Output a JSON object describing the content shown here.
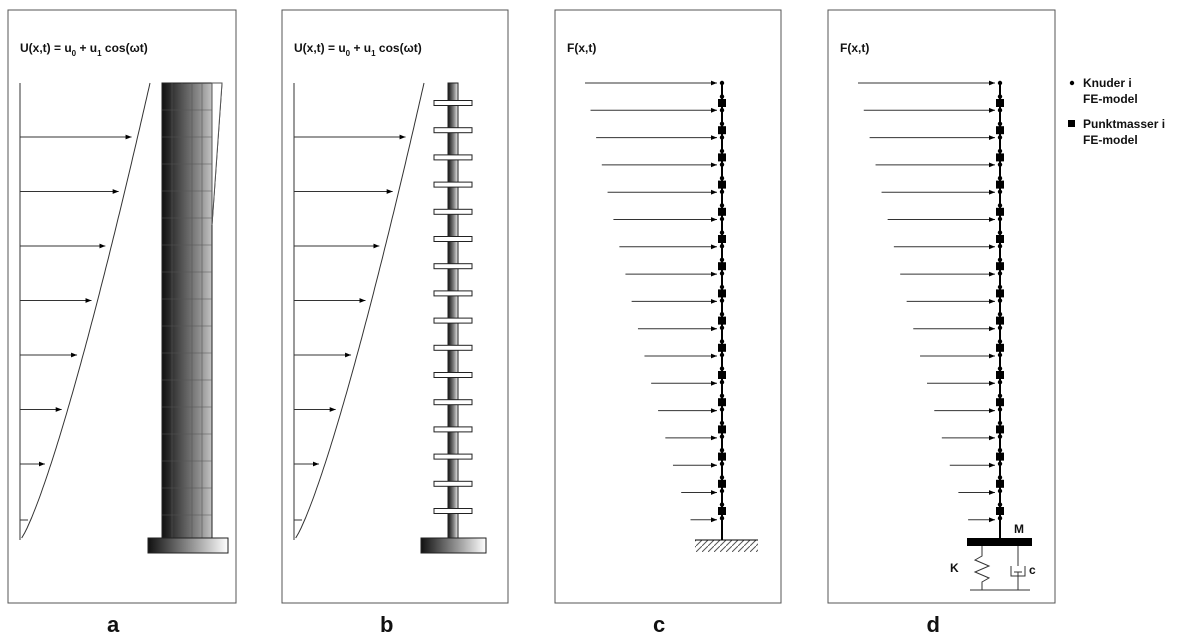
{
  "panels": [
    {
      "label": "a",
      "title": {
        "parts": [
          "U(x,t) = u",
          "0",
          " + u",
          "1",
          " cos(ωt)"
        ]
      }
    },
    {
      "label": "b",
      "title": {
        "parts": [
          "U(x,t) = u",
          "0",
          " + u",
          "1",
          " cos(ωt)"
        ]
      }
    },
    {
      "label": "c",
      "title": {
        "parts": [
          "F(x,t)"
        ]
      }
    },
    {
      "label": "d",
      "title": {
        "parts": [
          "F(x,t)"
        ]
      },
      "mass": "M",
      "spring": "K",
      "damper": "c"
    }
  ],
  "legend": [
    {
      "lines": [
        "Knuder i",
        "FE-model"
      ]
    },
    {
      "lines": [
        "Punktmasser i",
        "FE-model"
      ]
    }
  ]
}
